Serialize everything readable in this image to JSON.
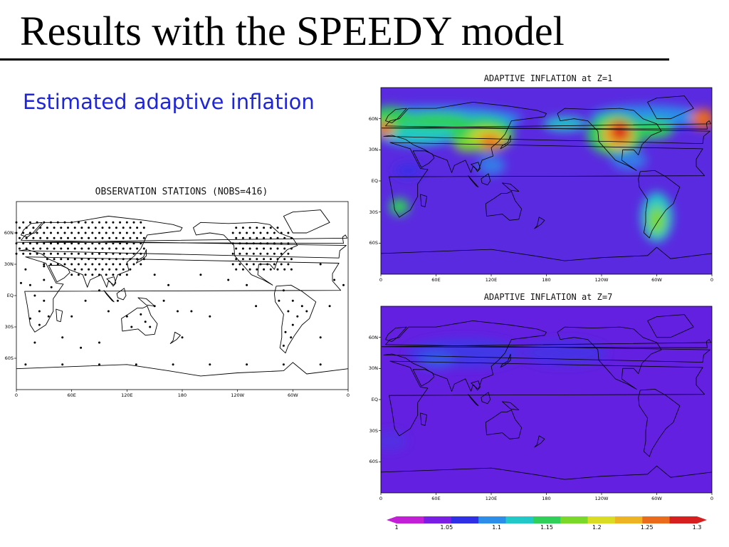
{
  "slide": {
    "title": "Results with the SPEEDY model",
    "subtitle": "Estimated adaptive inflation"
  },
  "obs_map": {
    "title": "OBSERVATION STATIONS (NOBS=416)",
    "lat_labels": [
      "60N",
      "30N",
      "EQ",
      "30S",
      "60S"
    ],
    "lon_labels": [
      "0",
      "60E",
      "120E",
      "180",
      "120W",
      "60W",
      "0"
    ]
  },
  "map_z1": {
    "title": "ADAPTIVE INFLATION at Z=1",
    "lat_labels": [
      "60N",
      "30N",
      "EQ",
      "30S",
      "60S"
    ],
    "lon_labels": [
      "0",
      "60E",
      "120E",
      "180",
      "120W",
      "60W",
      "0"
    ]
  },
  "map_z7": {
    "title": "ADAPTIVE INFLATION at Z=7",
    "lat_labels": [
      "60N",
      "30N",
      "EQ",
      "30S",
      "60S"
    ],
    "lon_labels": [
      "0",
      "60E",
      "120E",
      "180",
      "120W",
      "60W",
      "0"
    ]
  },
  "colorbar": {
    "labels": [
      "1",
      "1.05",
      "1.1",
      "1.15",
      "1.2",
      "1.25",
      "1.3"
    ],
    "colors": [
      "#c21fd6",
      "#7a1ee6",
      "#2f2fe8",
      "#2c8ee8",
      "#22c8c8",
      "#2fcf5a",
      "#7ad82a",
      "#d9dc22",
      "#eeb322",
      "#ea6b1c",
      "#d71f1f"
    ]
  }
}
